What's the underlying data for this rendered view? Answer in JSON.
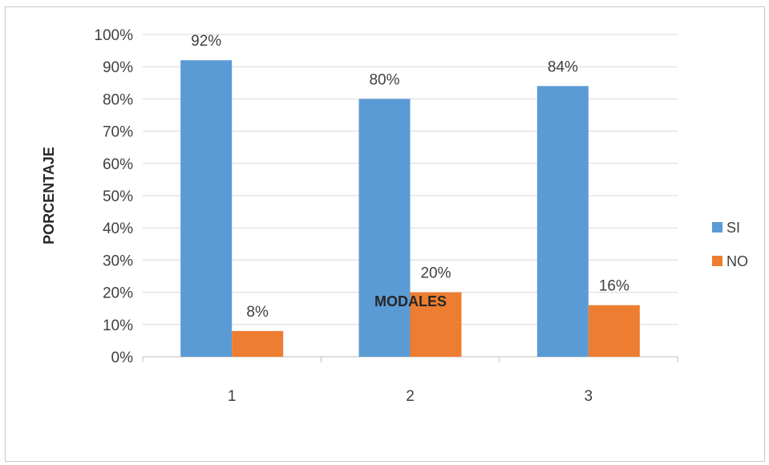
{
  "chart_data": {
    "type": "bar",
    "categories": [
      "1",
      "2",
      "3"
    ],
    "series": [
      {
        "name": "SI",
        "values": [
          92,
          80,
          84
        ],
        "labels": [
          "92%",
          "80%",
          "84%"
        ],
        "color": "#5b9bd5"
      },
      {
        "name": "NO",
        "values": [
          8,
          20,
          16
        ],
        "labels": [
          "8%",
          "20%",
          "16%"
        ],
        "color": "#ed7d31"
      }
    ],
    "title": "",
    "xlabel": "MODALES",
    "ylabel": "PORCENTAJE",
    "ylim": [
      0,
      100
    ],
    "yticks": [
      "0%",
      "10%",
      "20%",
      "30%",
      "40%",
      "50%",
      "60%",
      "70%",
      "80%",
      "90%",
      "100%"
    ],
    "grid": true,
    "legend_position": "right"
  }
}
